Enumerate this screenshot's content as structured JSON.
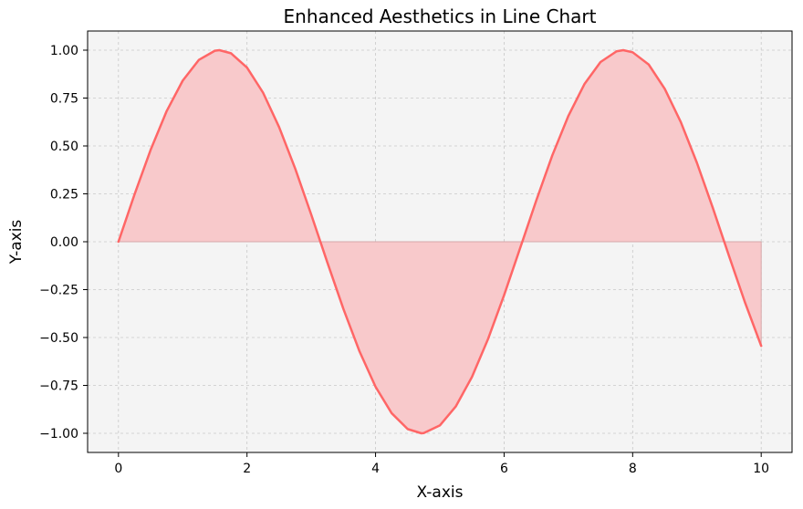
{
  "chart_data": {
    "type": "area",
    "title": "Enhanced Aesthetics in Line Chart",
    "xlabel": "X-axis",
    "ylabel": "Y-axis",
    "xlim": [
      -0.48,
      10.48
    ],
    "ylim": [
      -1.1,
      1.1
    ],
    "x_ticks": [
      0,
      2,
      4,
      6,
      8,
      10
    ],
    "x_tick_labels": [
      "0",
      "2",
      "4",
      "6",
      "8",
      "10"
    ],
    "y_ticks": [
      1.0,
      0.75,
      0.5,
      0.25,
      0.0,
      -0.25,
      -0.5,
      -0.75,
      -1.0
    ],
    "y_tick_labels": [
      "1.00",
      "0.75",
      "0.50",
      "0.25",
      "0.00",
      "−0.25",
      "−0.50",
      "−0.75",
      "−1.00"
    ],
    "grid": true,
    "series": [
      {
        "x": [
          0,
          0.25,
          0.5,
          0.75,
          1,
          1.25,
          1.5,
          1.5708,
          1.75,
          2,
          2.25,
          2.5,
          2.75,
          3,
          3.1416,
          3.25,
          3.5,
          3.75,
          4,
          4.25,
          4.5,
          4.7124,
          4.75,
          5,
          5.25,
          5.5,
          5.75,
          6,
          6.2832,
          6.5,
          6.75,
          7,
          7.25,
          7.5,
          7.75,
          7.854,
          8,
          8.25,
          8.5,
          8.75,
          9,
          9.25,
          9.4248,
          9.5,
          9.75,
          10
        ],
        "y": [
          0.0,
          0.247,
          0.479,
          0.682,
          0.841,
          0.949,
          0.997,
          1.0,
          0.984,
          0.909,
          0.778,
          0.598,
          0.382,
          0.141,
          0.0,
          -0.108,
          -0.351,
          -0.572,
          -0.757,
          -0.895,
          -0.978,
          -1.0,
          -0.999,
          -0.959,
          -0.859,
          -0.706,
          -0.508,
          -0.279,
          0.0,
          0.215,
          0.451,
          0.657,
          0.823,
          0.938,
          0.994,
          1.0,
          0.989,
          0.925,
          0.798,
          0.624,
          0.412,
          0.174,
          0.0,
          -0.075,
          -0.319,
          -0.544
        ]
      }
    ],
    "colors": {
      "line": "#ff6666",
      "fill": "#f8c9cb",
      "plot_background": "#f4f4f4",
      "grid": "#c8c8c8",
      "zero_line": "#d6a8aa"
    }
  }
}
